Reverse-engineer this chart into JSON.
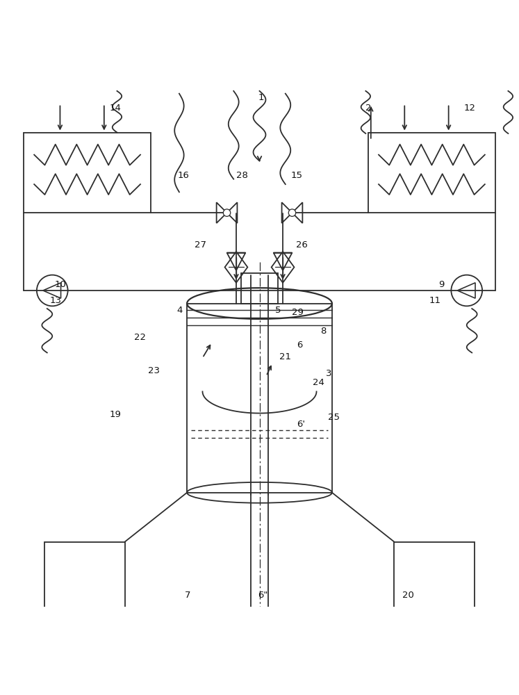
{
  "bg": "#ffffff",
  "lc": "#2d2d2d",
  "lw": 1.3,
  "fs": 9.5,
  "figsize": [
    7.47,
    10.0
  ],
  "dpi": 100
}
